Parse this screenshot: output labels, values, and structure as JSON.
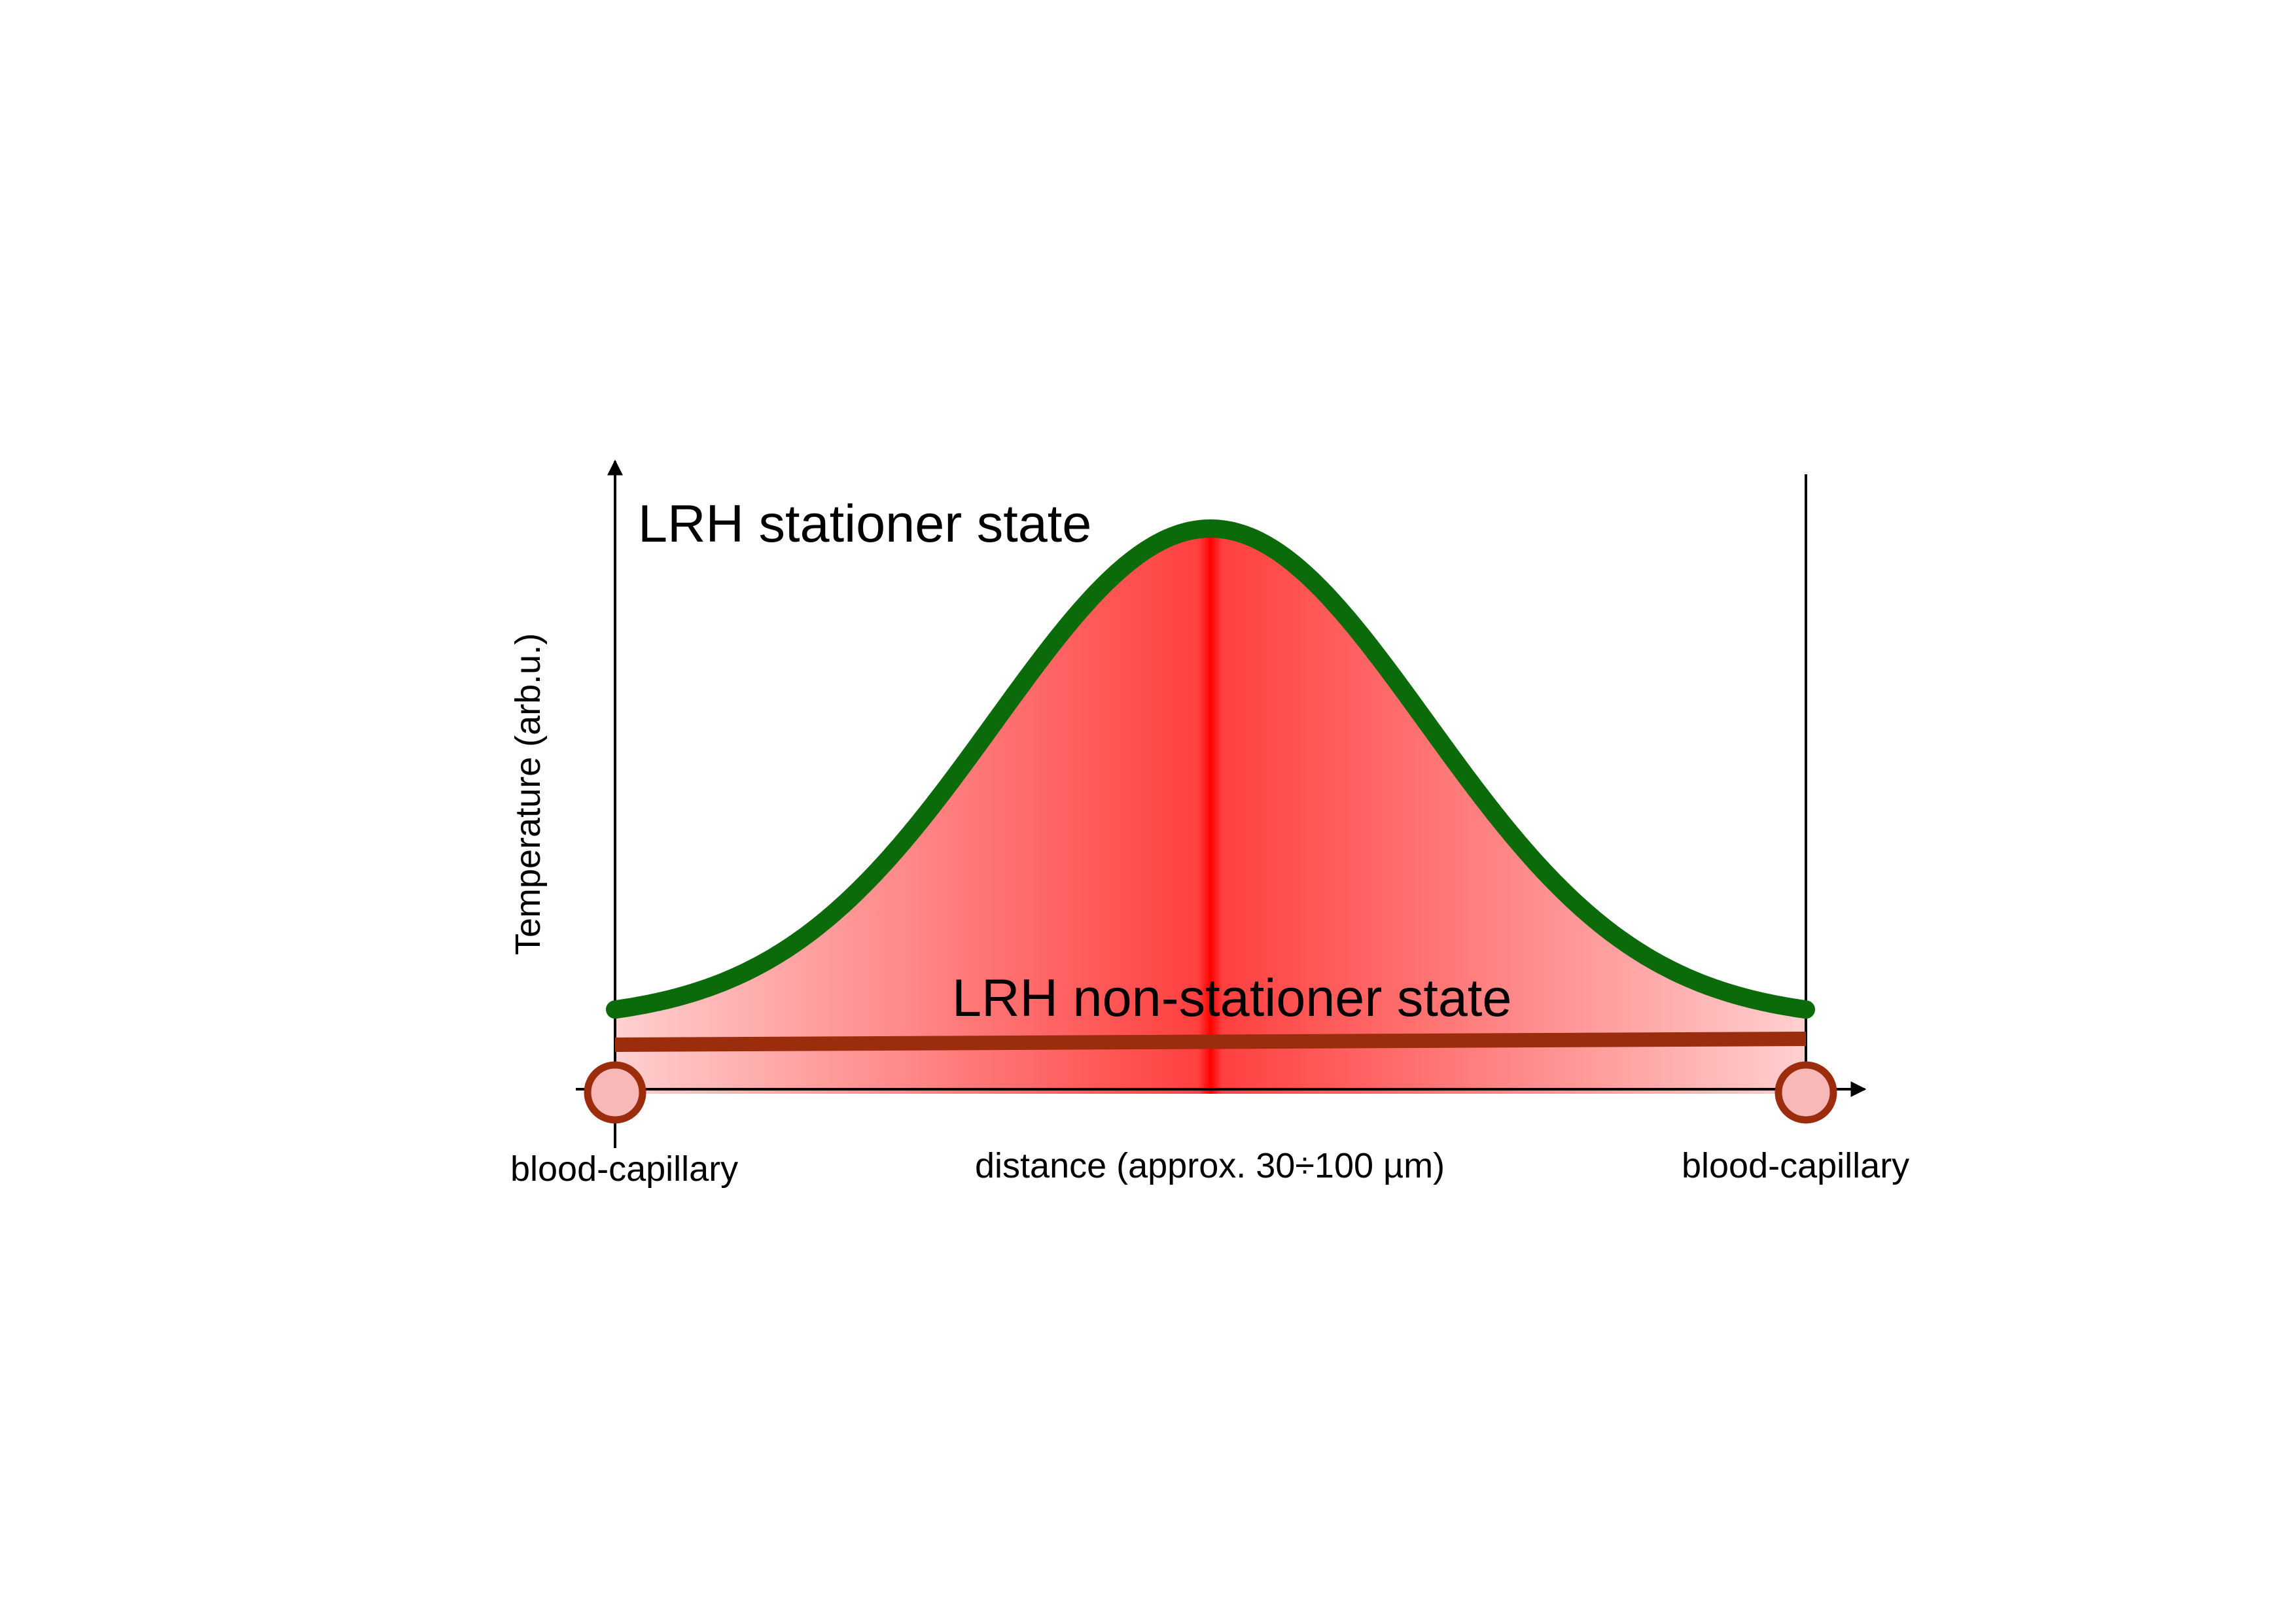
{
  "diagram": {
    "curve_labels": {
      "stationary": "LRH stationer state",
      "non_stationary": "LRH non-stationer state"
    },
    "axes": {
      "y_label": "Temperature (arb.u.)",
      "x_label": "distance (approx. 30÷100 µm)"
    },
    "endpoints": {
      "left": "blood-capillary",
      "right": "blood-capillary"
    }
  },
  "chart_data": {
    "type": "area",
    "title": "",
    "xlabel": "distance (approx. 30÷100 µm)",
    "ylabel": "Temperature (arb.u.)",
    "series": [
      {
        "name": "LRH stationer state",
        "shape": "bell"
      },
      {
        "name": "LRH non-stationer state",
        "shape": "flat"
      }
    ],
    "colors": {
      "stationary_curve": "#0b6b0b",
      "non_stationary_line": "#9b2c0c",
      "fill_peak": "#ff0000",
      "fill_edge": "#ffd0d0",
      "capillary_fill": "#f8b8b8",
      "capillary_stroke": "#9b2c0c"
    },
    "grid": false
  }
}
